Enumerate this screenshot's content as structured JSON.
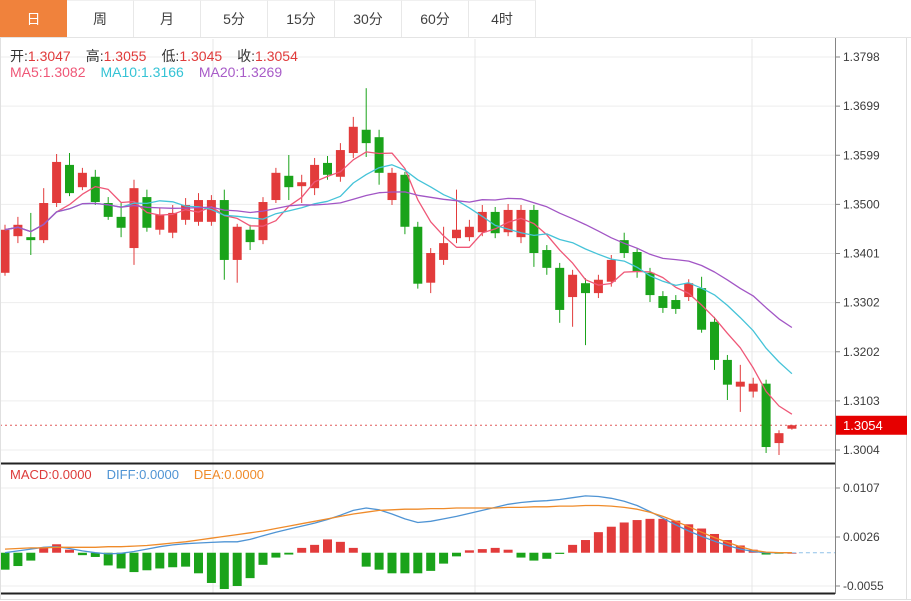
{
  "tabs": [
    {
      "name": "day",
      "label": "日",
      "active": true
    },
    {
      "name": "week",
      "label": "周",
      "active": false
    },
    {
      "name": "month",
      "label": "月",
      "active": false
    },
    {
      "name": "min5",
      "label": "5分",
      "active": false
    },
    {
      "name": "min15",
      "label": "15分",
      "active": false
    },
    {
      "name": "min30",
      "label": "30分",
      "active": false
    },
    {
      "name": "min60",
      "label": "60分",
      "active": false
    },
    {
      "name": "h4",
      "label": "4时",
      "active": false
    }
  ],
  "legend": {
    "ohlc": [
      {
        "name": "open",
        "label": "开:",
        "value": "1.3047"
      },
      {
        "name": "high",
        "label": "高:",
        "value": "1.3055"
      },
      {
        "name": "low",
        "label": "低:",
        "value": "1.3045"
      },
      {
        "name": "close",
        "label": "收:",
        "value": "1.3054"
      }
    ],
    "ma": [
      {
        "name": "ma5",
        "label": "MA5:",
        "value": "1.3082",
        "color": "#ef5777"
      },
      {
        "name": "ma10",
        "label": "MA10:",
        "value": "1.3166",
        "color": "#35c3d5"
      },
      {
        "name": "ma20",
        "label": "MA20:",
        "value": "1.3269",
        "color": "#a85cc8"
      }
    ],
    "macd": [
      {
        "name": "macd",
        "label": "MACD:",
        "value": "0.0000",
        "color": "#dd3b3a"
      },
      {
        "name": "diff",
        "label": "DIFF:",
        "value": "0.0000",
        "color": "#4f94d4"
      },
      {
        "name": "dea",
        "label": "DEA:",
        "value": "0.0000",
        "color": "#ef8b2a"
      }
    ]
  },
  "colors": {
    "up": "#e23b3b",
    "down": "#1aa31a",
    "ma5": "#ef5777",
    "ma10": "#45c3d8",
    "ma20": "#a256c5",
    "diff": "#4f94d4",
    "dea": "#ef8b2a",
    "tab_active": "#f0823c",
    "badge": "#e60000",
    "price_line": "#e05a5a",
    "grid": "#ededed",
    "vgrid": "#e7e7e7",
    "axis_line": "#858585",
    "axis_text": "#3c3c3c",
    "separator": "#222222",
    "frame": "#e0e0e0",
    "zero_dash": "#8fc1e8",
    "value_red": "#e03b3b"
  },
  "chart_data": {
    "type": "candlestick_with_macd",
    "main": {
      "y_ticks": [
        1.3798,
        1.3699,
        1.3599,
        1.35,
        1.3401,
        1.3302,
        1.3202,
        1.3103,
        1.3004
      ],
      "current_price": 1.3054,
      "current_price_label": "1.3054",
      "ma_periods": [
        5,
        10,
        20
      ],
      "candles": [
        [
          1.3362,
          1.3459,
          1.3356,
          1.3449
        ],
        [
          1.3436,
          1.3475,
          1.3422,
          1.3459
        ],
        [
          1.3434,
          1.3483,
          1.3398,
          1.3428
        ],
        [
          1.3428,
          1.3533,
          1.3422,
          1.3503
        ],
        [
          1.3503,
          1.3602,
          1.3495,
          1.3586
        ],
        [
          1.358,
          1.3604,
          1.3517,
          1.3523
        ],
        [
          1.3535,
          1.3574,
          1.3529,
          1.3564
        ],
        [
          1.3556,
          1.357,
          1.3499,
          1.3505
        ],
        [
          1.3503,
          1.3515,
          1.3469,
          1.3475
        ],
        [
          1.3475,
          1.3503,
          1.3434,
          1.3453
        ],
        [
          1.3412,
          1.355,
          1.3378,
          1.3533
        ],
        [
          1.3515,
          1.353,
          1.3445,
          1.3453
        ],
        [
          1.3449,
          1.3493,
          1.3439,
          1.3479
        ],
        [
          1.3443,
          1.3499,
          1.3432,
          1.3483
        ],
        [
          1.3469,
          1.3513,
          1.3459,
          1.3499
        ],
        [
          1.3465,
          1.3523,
          1.3457,
          1.3509
        ],
        [
          1.3465,
          1.3519,
          1.3457,
          1.3509
        ],
        [
          1.3509,
          1.353,
          1.3348,
          1.3388
        ],
        [
          1.3388,
          1.3461,
          1.3342,
          1.3455
        ],
        [
          1.3449,
          1.3459,
          1.3408,
          1.3424
        ],
        [
          1.3428,
          1.3515,
          1.342,
          1.3505
        ],
        [
          1.3509,
          1.3574,
          1.3503,
          1.3564
        ],
        [
          1.3558,
          1.36,
          1.3509,
          1.3535
        ],
        [
          1.3537,
          1.356,
          1.3503,
          1.3545
        ],
        [
          1.3533,
          1.3594,
          1.3519,
          1.358
        ],
        [
          1.3584,
          1.3598,
          1.355,
          1.356
        ],
        [
          1.3556,
          1.3624,
          1.3546,
          1.361
        ],
        [
          1.3604,
          1.3677,
          1.3594,
          1.3657
        ],
        [
          1.3651,
          1.3735,
          1.3596,
          1.3624
        ],
        [
          1.3636,
          1.3651,
          1.354,
          1.3564
        ],
        [
          1.3509,
          1.3574,
          1.3499,
          1.3564
        ],
        [
          1.356,
          1.3566,
          1.344,
          1.3455
        ],
        [
          1.3455,
          1.3465,
          1.333,
          1.334
        ],
        [
          1.3342,
          1.3412,
          1.3321,
          1.3402
        ],
        [
          1.3388,
          1.3455,
          1.3378,
          1.3422
        ],
        [
          1.3432,
          1.353,
          1.3422,
          1.3449
        ],
        [
          1.3434,
          1.3469,
          1.3426,
          1.3455
        ],
        [
          1.3444,
          1.3499,
          1.3436,
          1.3485
        ],
        [
          1.3485,
          1.3495,
          1.3432,
          1.3442
        ],
        [
          1.3444,
          1.3501,
          1.3436,
          1.3489
        ],
        [
          1.3434,
          1.3499,
          1.3422,
          1.3489
        ],
        [
          1.3489,
          1.3499,
          1.3374,
          1.3402
        ],
        [
          1.3408,
          1.3418,
          1.3358,
          1.3372
        ],
        [
          1.3372,
          1.3382,
          1.3261,
          1.3287
        ],
        [
          1.3313,
          1.3368,
          1.3253,
          1.3358
        ],
        [
          1.3341,
          1.3351,
          1.3216,
          1.3321
        ],
        [
          1.3321,
          1.3358,
          1.3311,
          1.3348
        ],
        [
          1.3344,
          1.3398,
          1.3334,
          1.3388
        ],
        [
          1.3428,
          1.3443,
          1.3392,
          1.3402
        ],
        [
          1.3404,
          1.3412,
          1.3352,
          1.3364
        ],
        [
          1.3362,
          1.3372,
          1.3303,
          1.3317
        ],
        [
          1.3315,
          1.3325,
          1.3281,
          1.3291
        ],
        [
          1.3307,
          1.3317,
          1.3279,
          1.3289
        ],
        [
          1.3313,
          1.3349,
          1.3305,
          1.3341
        ],
        [
          1.3331,
          1.3354,
          1.3241,
          1.3247
        ],
        [
          1.3263,
          1.3273,
          1.3166,
          1.3186
        ],
        [
          1.3186,
          1.3196,
          1.3105,
          1.3136
        ],
        [
          1.3132,
          1.3176,
          1.3081,
          1.3142
        ],
        [
          1.3122,
          1.315,
          1.311,
          1.3138
        ],
        [
          1.3138,
          1.3146,
          1.2998,
          1.301
        ],
        [
          1.3018,
          1.3044,
          1.2994,
          1.3038
        ],
        [
          1.3047,
          1.3055,
          1.3045,
          1.3054
        ]
      ]
    },
    "macd": {
      "y_ticks": [
        0.0107,
        0.0026,
        -0.0055
      ],
      "histogram": [
        -0.0028,
        -0.0022,
        -0.0013,
        0.0008,
        0.0014,
        0.0005,
        -0.0004,
        -0.0007,
        -0.0021,
        -0.0026,
        -0.0032,
        -0.0029,
        -0.0026,
        -0.0024,
        -0.0023,
        -0.0034,
        -0.005,
        -0.006,
        -0.0055,
        -0.0042,
        -0.002,
        -0.0008,
        -0.0003,
        0.0008,
        0.0013,
        0.0022,
        0.0018,
        0.0008,
        -0.0023,
        -0.0028,
        -0.0034,
        -0.0034,
        -0.0034,
        -0.003,
        -0.0018,
        -0.0006,
        0.0004,
        0.0006,
        0.0008,
        0.0005,
        -0.0008,
        -0.0013,
        -0.001,
        -0.0002,
        0.0013,
        0.0021,
        0.0034,
        0.0043,
        0.005,
        0.0054,
        0.0056,
        0.0056,
        0.0053,
        0.0047,
        0.004,
        0.0031,
        0.0021,
        0.0012,
        0.0005,
        -0.0003,
        -0.0001,
        0.0
      ],
      "diff": [
        0.0,
        0.0003,
        0.0006,
        0.0009,
        0.001,
        0.0007,
        0.0003,
        0.0,
        -0.0002,
        -0.0001,
        0.0002,
        0.0006,
        0.001,
        0.0013,
        0.0015,
        0.0016,
        0.0017,
        0.0018,
        0.0018,
        0.0022,
        0.0028,
        0.0034,
        0.0039,
        0.0044,
        0.0049,
        0.0055,
        0.0062,
        0.007,
        0.0074,
        0.0071,
        0.0064,
        0.0056,
        0.005,
        0.0052,
        0.0056,
        0.006,
        0.0065,
        0.007,
        0.0075,
        0.008,
        0.0083,
        0.0085,
        0.0086,
        0.0088,
        0.0091,
        0.0094,
        0.0093,
        0.009,
        0.0085,
        0.0078,
        0.0068,
        0.0057,
        0.0046,
        0.0036,
        0.0027,
        0.0019,
        0.0012,
        0.0006,
        0.0002,
        0.0,
        0.0,
        0.0
      ],
      "dea": [
        0.0006,
        0.0007,
        0.0008,
        0.0008,
        0.0009,
        0.0009,
        0.0009,
        0.0009,
        0.001,
        0.001,
        0.0011,
        0.0012,
        0.0014,
        0.0016,
        0.0018,
        0.0021,
        0.0024,
        0.0027,
        0.003,
        0.0033,
        0.0036,
        0.004,
        0.0044,
        0.0048,
        0.0052,
        0.0056,
        0.006,
        0.0064,
        0.0067,
        0.007,
        0.0071,
        0.0072,
        0.0072,
        0.0073,
        0.0073,
        0.0074,
        0.0074,
        0.0074,
        0.0074,
        0.0075,
        0.0075,
        0.0076,
        0.0076,
        0.0077,
        0.0077,
        0.0078,
        0.0078,
        0.0077,
        0.0075,
        0.0072,
        0.0067,
        0.006,
        0.0052,
        0.0043,
        0.0034,
        0.0025,
        0.0017,
        0.001,
        0.0004,
        0.0001,
        0.0,
        0.0
      ]
    }
  }
}
